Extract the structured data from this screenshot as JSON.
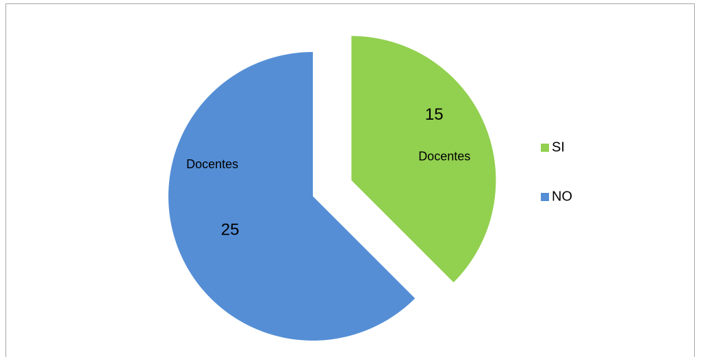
{
  "chart_data": {
    "type": "pie",
    "categories": [
      "SI",
      "NO"
    ],
    "values": [
      15,
      25
    ],
    "colors": [
      "#92d050",
      "#558ed5"
    ],
    "annotations": [
      "Docentes",
      "Docentes"
    ],
    "exploded": [
      true,
      false
    ],
    "legend": "right"
  }
}
